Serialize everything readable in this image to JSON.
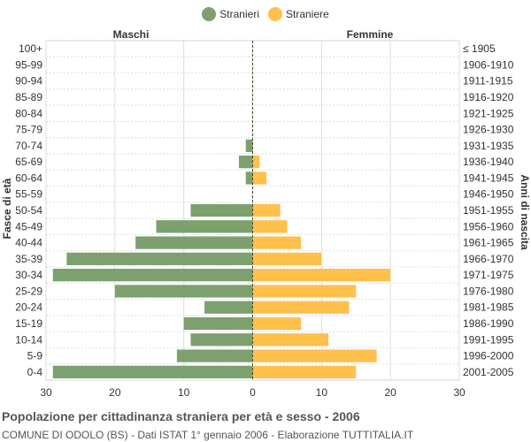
{
  "legend": [
    {
      "label": "Stranieri",
      "color": "#7da06f"
    },
    {
      "label": "Straniere",
      "color": "#ffc04c"
    }
  ],
  "footer": {
    "title": "Popolazione per cittadinanza straniera per età e sesso - 2006",
    "subtitle": "COMUNE DI ODOLO (BS) - Dati ISTAT 1° gennaio 2006 - Elaborazione TUTTITALIA.IT"
  },
  "chart_data": {
    "type": "bar",
    "orientation": "horizontal-population-pyramid",
    "left_header": "Maschi",
    "right_header": "Femmine",
    "ylabel_left": "Fasce di età",
    "ylabel_right": "Anni di nascita",
    "categories": [
      "100+",
      "95-99",
      "90-94",
      "85-89",
      "80-84",
      "75-79",
      "70-74",
      "65-69",
      "60-64",
      "55-59",
      "50-54",
      "45-49",
      "40-44",
      "35-39",
      "30-34",
      "25-29",
      "20-24",
      "15-19",
      "10-14",
      "5-9",
      "0-4"
    ],
    "birth_years": [
      "≤ 1905",
      "1906-1910",
      "1911-1915",
      "1916-1920",
      "1921-1925",
      "1926-1930",
      "1931-1935",
      "1936-1940",
      "1941-1945",
      "1946-1950",
      "1951-1955",
      "1956-1960",
      "1961-1965",
      "1966-1970",
      "1971-1975",
      "1976-1980",
      "1981-1985",
      "1986-1990",
      "1991-1995",
      "1996-2000",
      "2001-2005"
    ],
    "series": [
      {
        "name": "Stranieri",
        "color": "#7da06f",
        "values": [
          0,
          0,
          0,
          0,
          0,
          0,
          1,
          2,
          1,
          0,
          9,
          14,
          17,
          27,
          29,
          20,
          7,
          10,
          9,
          11,
          29
        ]
      },
      {
        "name": "Straniere",
        "color": "#ffc04c",
        "values": [
          0,
          0,
          0,
          0,
          0,
          0,
          0,
          1,
          2,
          0,
          4,
          5,
          7,
          10,
          20,
          15,
          14,
          7,
          11,
          18,
          15
        ]
      }
    ],
    "xlim": [
      -30,
      30
    ],
    "xticks": [
      30,
      20,
      10,
      0,
      10,
      20,
      30
    ],
    "grid": true
  }
}
